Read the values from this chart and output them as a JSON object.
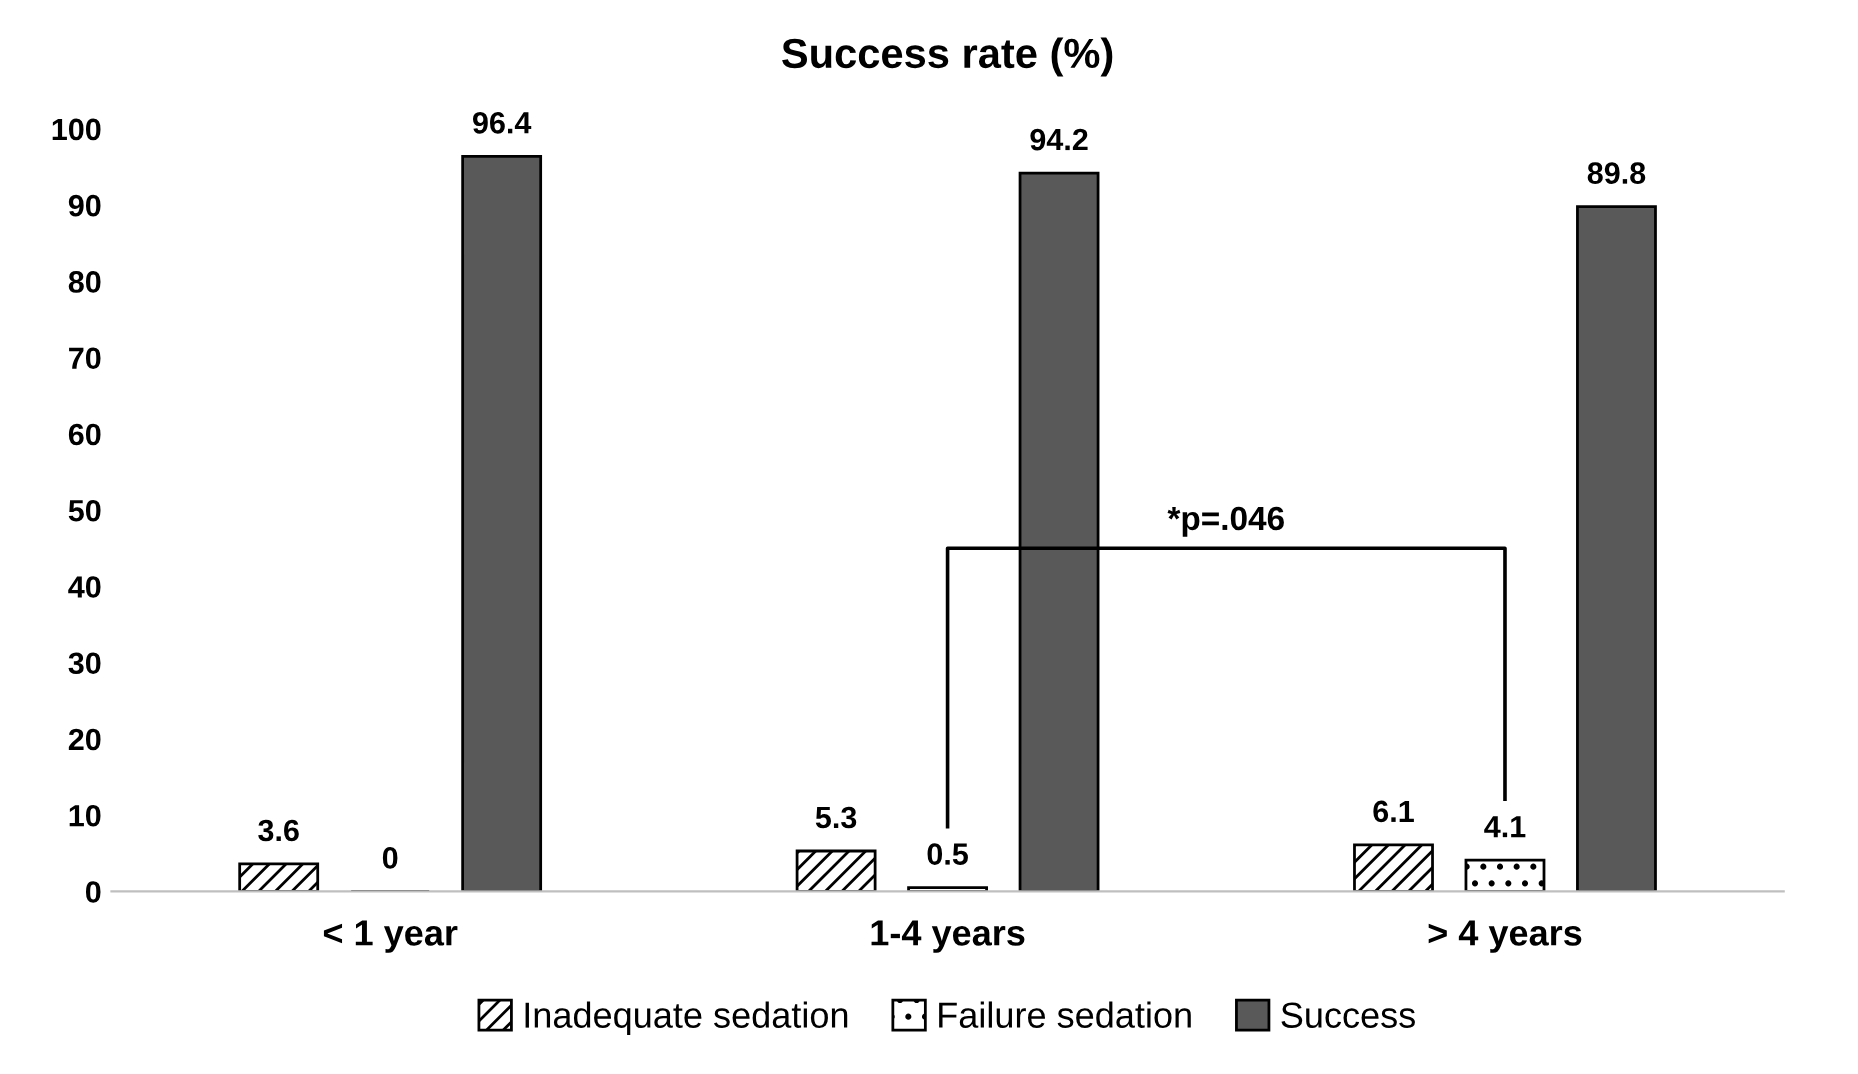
{
  "chart_data": {
    "type": "bar",
    "title": "Success rate (%)",
    "categories": [
      "< 1 year",
      "1-4 years",
      "> 4 years"
    ],
    "series": [
      {
        "name": "Inadequate sedation",
        "color": "#000000",
        "values": [
          3.6,
          5.3,
          6.1
        ]
      },
      {
        "name": "Failure sedation",
        "color": "#000000",
        "values": [
          0,
          0.5,
          4.1
        ]
      },
      {
        "name": "Success",
        "color": "#595959",
        "values": [
          96.4,
          94.2,
          89.8
        ]
      }
    ],
    "ylim": [
      0,
      100
    ],
    "yticks": [
      0,
      10,
      20,
      30,
      40,
      50,
      60,
      70,
      80,
      90,
      100
    ],
    "grid": false,
    "legend": "bottom",
    "data_labels": true,
    "annotations": [
      "*p=.046"
    ]
  }
}
